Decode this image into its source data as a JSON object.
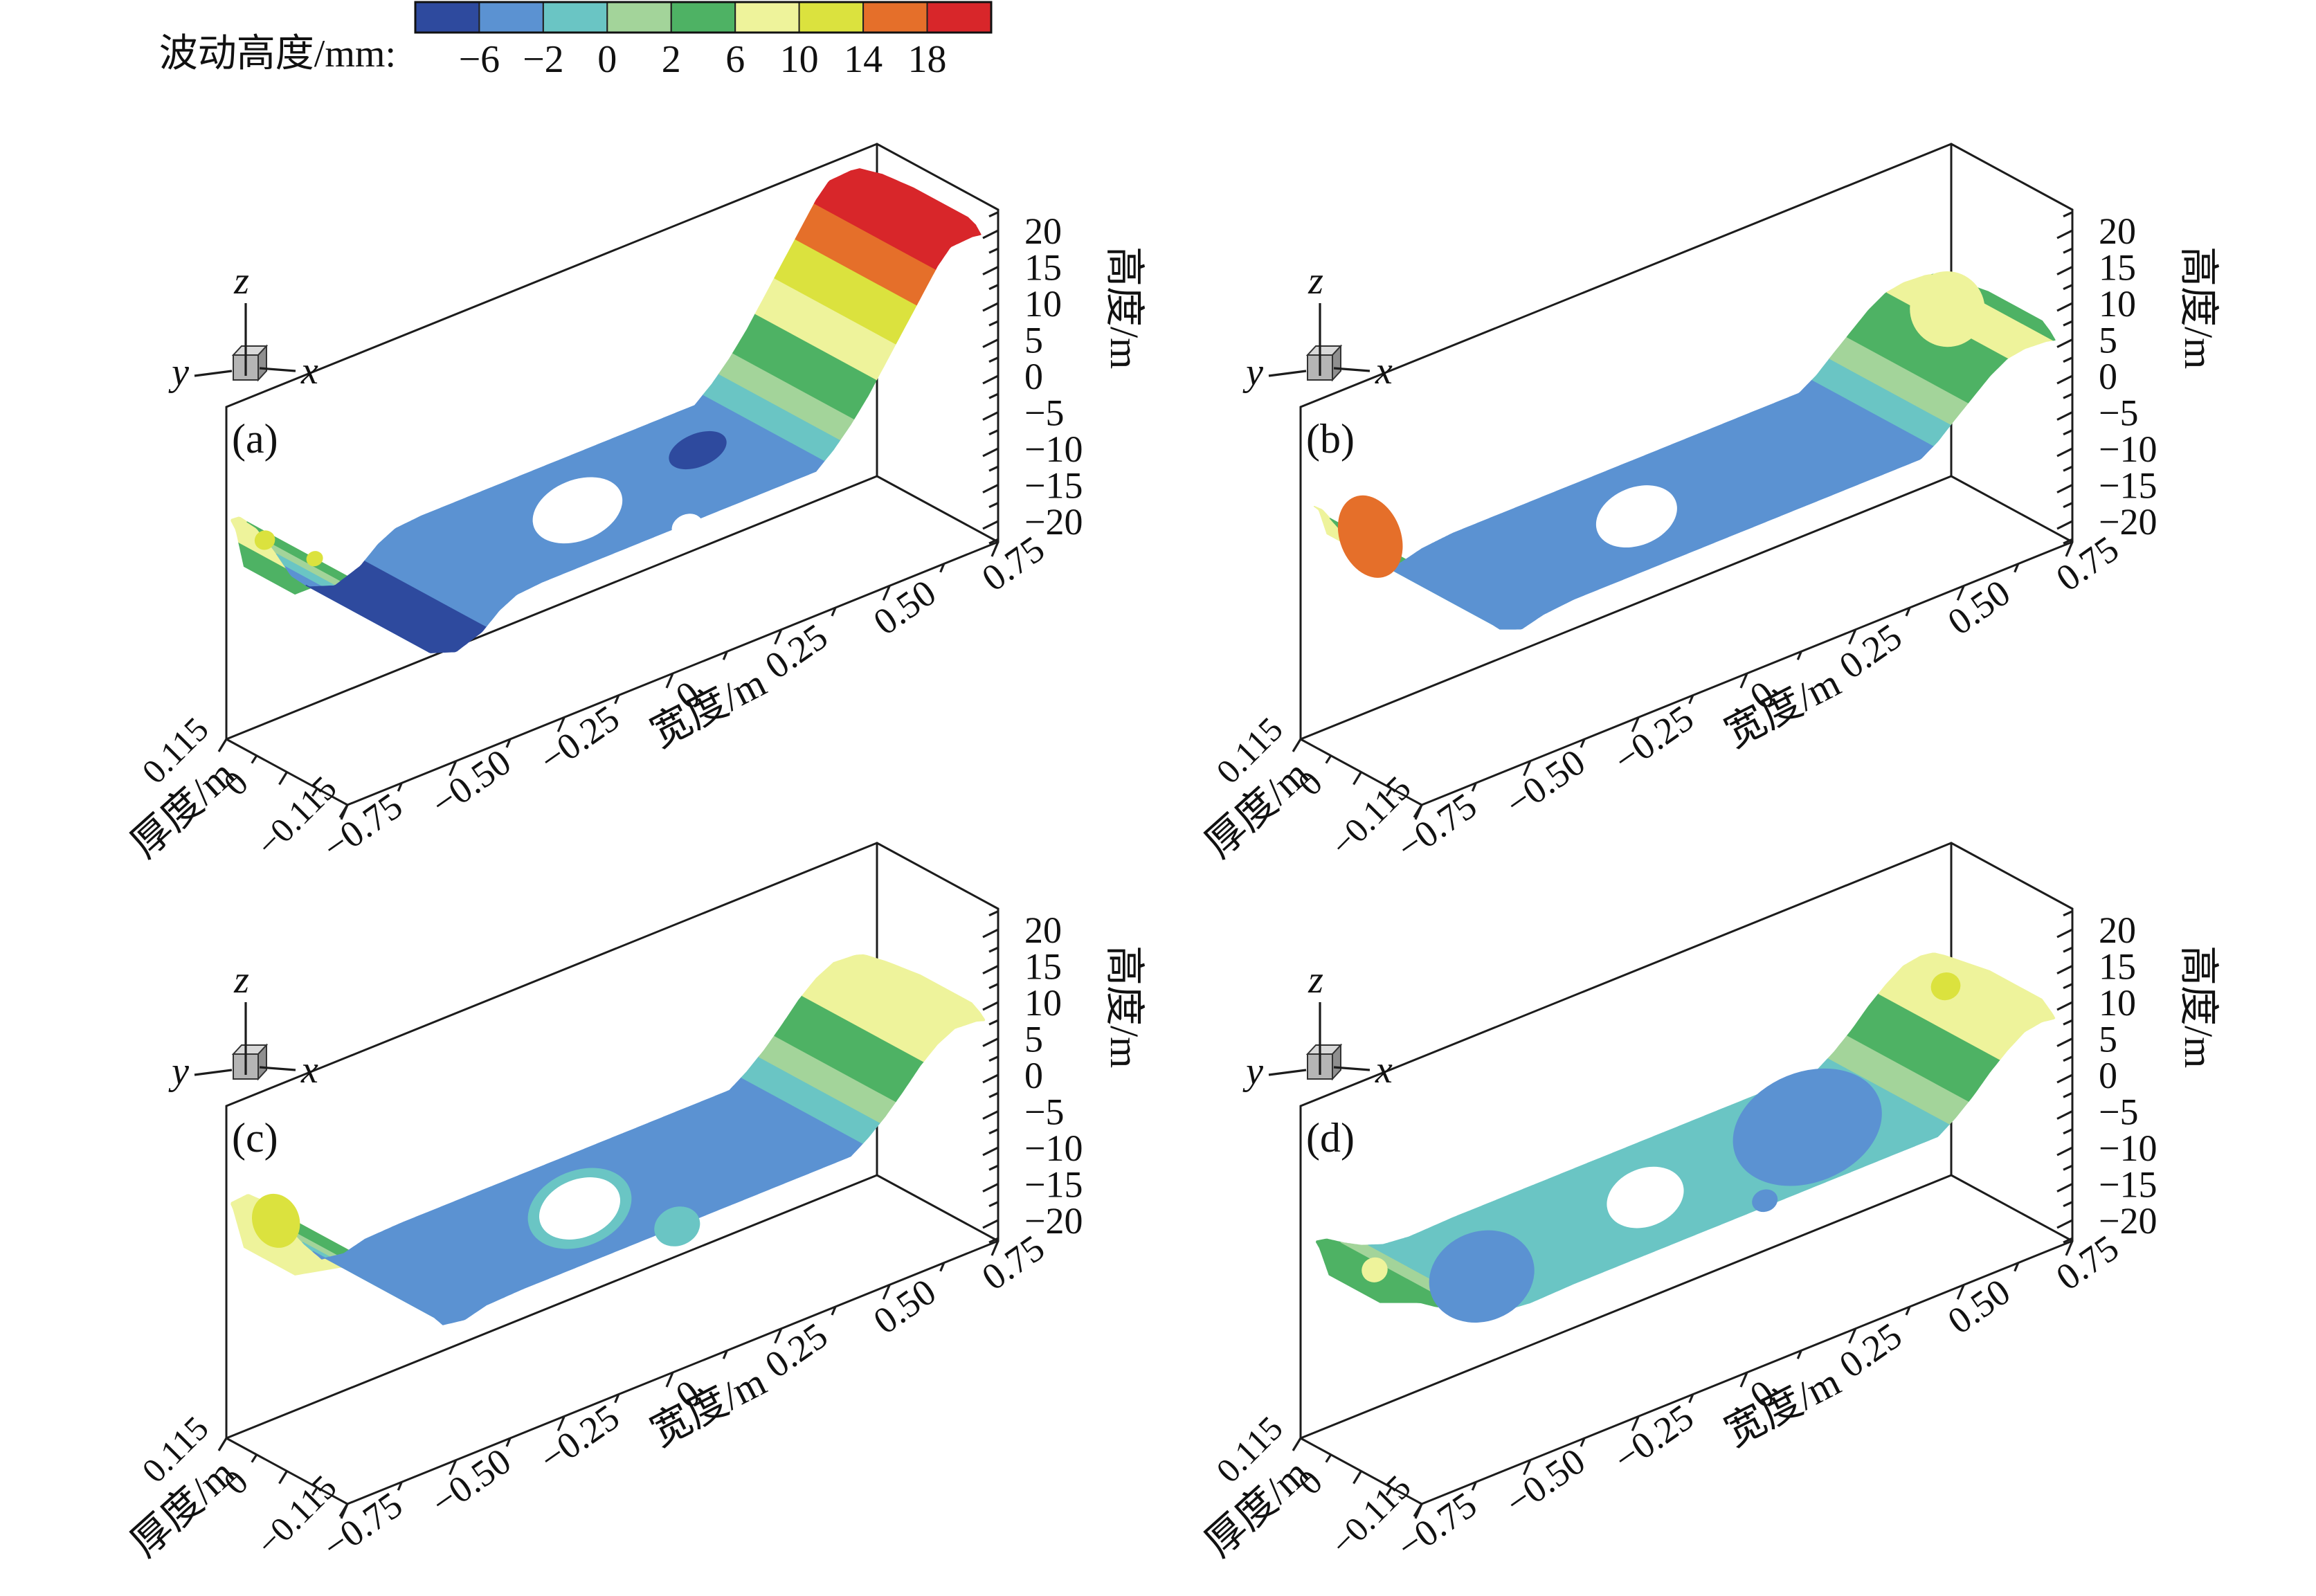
{
  "legend": {
    "title": "波动高度/mm:",
    "ticks": [
      "−6",
      "−2",
      "0",
      "2",
      "6",
      "10",
      "14",
      "18"
    ]
  },
  "axes": {
    "x_title": "宽度/m",
    "x_ticks": [
      "−0.75",
      "−0.50",
      "−0.25",
      "0",
      "0.25",
      "0.50",
      "0.75"
    ],
    "y_title": "厚度/m",
    "y_ticks": [
      "0.115",
      "0",
      "−0.115"
    ],
    "z_title": "高度/m",
    "z_ticks": [
      "20",
      "15",
      "10",
      "5",
      "0",
      "−5",
      "−10",
      "−15",
      "−20"
    ],
    "triad": {
      "x": "x",
      "y": "y",
      "z": "z"
    }
  },
  "subplots": [
    {
      "label": "(a)"
    },
    {
      "label": "(b)"
    },
    {
      "label": "(c)"
    },
    {
      "label": "(d)"
    }
  ],
  "chart_data": {
    "type": "heatmap",
    "subtype": "3d-contour-surface-grid",
    "panels": [
      "(a)",
      "(b)",
      "(c)",
      "(d)"
    ],
    "colorbar_title": "波动高度/mm:",
    "contour_levels_mm": [
      -6,
      -2,
      0,
      2,
      6,
      10,
      14,
      18
    ],
    "palette": [
      "#2e4a9e",
      "#5b92d2",
      "#6ac5c4",
      "#a3d49a",
      "#4eb264",
      "#eef39b",
      "#dbe23e",
      "#e56f2a",
      "#d8262a"
    ],
    "x_axis": {
      "label": "宽度/m",
      "range": [
        -0.75,
        0.75
      ],
      "major_step": 0.25
    },
    "y_axis": {
      "label": "厚度/m",
      "range": [
        0.115,
        -0.115
      ],
      "ticks": [
        0.115,
        0,
        -0.115
      ]
    },
    "z_axis": {
      "label": "高度/m",
      "range": [
        20,
        -20
      ],
      "major_step": 5
    },
    "surfaces": [
      {
        "label": "(a)",
        "profile_mm": [
          [
            -0.79,
            4.5
          ],
          [
            -0.76,
            7.2
          ],
          [
            -0.72,
            7.0
          ],
          [
            -0.68,
            4.5
          ],
          [
            -0.64,
            0.5
          ],
          [
            -0.6,
            -4
          ],
          [
            -0.56,
            -6.5
          ],
          [
            -0.5,
            -7.8
          ],
          [
            -0.44,
            -6.5
          ],
          [
            -0.4,
            -4.5
          ],
          [
            -0.36,
            -3.3
          ],
          [
            -0.3,
            -3
          ],
          [
            -0.1,
            -3
          ],
          [
            0.1,
            -3
          ],
          [
            0.33,
            -3
          ],
          [
            0.37,
            -1
          ],
          [
            0.41,
            1.5
          ],
          [
            0.45,
            4.5
          ],
          [
            0.49,
            8
          ],
          [
            0.53,
            11.5
          ],
          [
            0.57,
            15
          ],
          [
            0.61,
            18.5
          ],
          [
            0.64,
            20.4
          ],
          [
            0.69,
            20.6
          ],
          [
            0.73,
            20.2
          ],
          [
            0.76,
            19
          ]
        ],
        "features": [
          {
            "name": "hole",
            "x": -0.08,
            "t": 0.5,
            "rx": 0.1,
            "rt": 0.44,
            "color": "white"
          },
          {
            "name": "deep-spot",
            "x": 0.225,
            "t": 0.4,
            "rx": 0.065,
            "rt": 0.24,
            "color": 0
          },
          {
            "name": "tip-dot",
            "x": -0.745,
            "t": 0.3,
            "rx": 0.022,
            "rt": 0.14,
            "color": 6
          },
          {
            "name": "tip-dot",
            "x": -0.7,
            "t": 0.55,
            "rx": 0.018,
            "rt": 0.11,
            "color": 6
          },
          {
            "name": "edge-notch",
            "x": 0.025,
            "t": 1.03,
            "rx": 0.034,
            "rt": 0.18,
            "color": "white"
          }
        ]
      },
      {
        "label": "(b)",
        "profile_mm": [
          [
            -0.77,
            8.5
          ],
          [
            -0.74,
            9.5
          ],
          [
            -0.7,
            7.5
          ],
          [
            -0.65,
            3
          ],
          [
            -0.61,
            -0.5
          ],
          [
            -0.57,
            -3
          ],
          [
            -0.52,
            -4.2
          ],
          [
            -0.47,
            -3.4
          ],
          [
            -0.4,
            -3
          ],
          [
            0,
            -3
          ],
          [
            0.4,
            -3
          ],
          [
            0.44,
            -1.5
          ],
          [
            0.48,
            0.6
          ],
          [
            0.52,
            2.6
          ],
          [
            0.56,
            4.6
          ],
          [
            0.6,
            6
          ],
          [
            0.64,
            6.4
          ],
          [
            0.69,
            6.2
          ],
          [
            0.73,
            5.6
          ],
          [
            0.76,
            4.8
          ]
        ],
        "features": [
          {
            "name": "tip-orange-patch",
            "x": -0.715,
            "t": 0.45,
            "rx": 0.065,
            "rt": 0.62,
            "color": 7
          },
          {
            "name": "hole",
            "x": -0.115,
            "t": 0.5,
            "rx": 0.09,
            "rt": 0.42,
            "color": "white"
          },
          {
            "name": "cap-spot",
            "x": 0.635,
            "t": 0.38,
            "rx": 0.08,
            "rt": 0.55,
            "color": 5
          }
        ]
      },
      {
        "label": "(c)",
        "profile_mm": [
          [
            -0.79,
            7
          ],
          [
            -0.75,
            9.2
          ],
          [
            -0.7,
            9.5
          ],
          [
            -0.65,
            7
          ],
          [
            -0.61,
            3
          ],
          [
            -0.57,
            -0.5
          ],
          [
            -0.53,
            -3.5
          ],
          [
            -0.48,
            -4
          ],
          [
            -0.43,
            -3.2
          ],
          [
            -0.35,
            -3
          ],
          [
            0,
            -3
          ],
          [
            0.41,
            -3
          ],
          [
            0.45,
            -1.4
          ],
          [
            0.49,
            0.6
          ],
          [
            0.53,
            3
          ],
          [
            0.57,
            5.6
          ],
          [
            0.61,
            7.6
          ],
          [
            0.65,
            8.8
          ],
          [
            0.7,
            8.6
          ],
          [
            0.74,
            7.8
          ],
          [
            0.77,
            6.8
          ]
        ],
        "features": [
          {
            "name": "hole-ring",
            "x": -0.075,
            "t": 0.5,
            "rx": 0.115,
            "rt": 0.55,
            "color": 2
          },
          {
            "name": "hole",
            "x": -0.075,
            "t": 0.5,
            "rx": 0.09,
            "rt": 0.42,
            "color": "white"
          },
          {
            "name": "front-spot",
            "x": 0.01,
            "t": 1.0,
            "rx": 0.05,
            "rt": 0.28,
            "color": 2
          },
          {
            "name": "tongue-stripe",
            "x": -0.725,
            "t": 0.32,
            "rx": 0.05,
            "rt": 0.4,
            "color": 6
          }
        ]
      },
      {
        "label": "(d)",
        "profile_mm": [
          [
            -0.765,
            2.6
          ],
          [
            -0.73,
            3.6
          ],
          [
            -0.69,
            3.1
          ],
          [
            -0.65,
            1.6
          ],
          [
            -0.61,
            0.3
          ],
          [
            -0.56,
            -0.8
          ],
          [
            -0.5,
            -1.2
          ],
          [
            -0.4,
            -1
          ],
          [
            0,
            -1
          ],
          [
            0.44,
            -1
          ],
          [
            0.48,
            0.6
          ],
          [
            0.52,
            2.6
          ],
          [
            0.56,
            5
          ],
          [
            0.6,
            7
          ],
          [
            0.64,
            8.6
          ],
          [
            0.68,
            9
          ],
          [
            0.72,
            8.6
          ],
          [
            0.76,
            7.6
          ]
        ],
        "features": [
          {
            "name": "depression",
            "x": 0.29,
            "t": 0.46,
            "rx": 0.165,
            "rt": 0.8,
            "color": 1
          },
          {
            "name": "depression",
            "x": -0.5,
            "t": 0.6,
            "rx": 0.115,
            "rt": 0.65,
            "color": 1
          },
          {
            "name": "hole",
            "x": -0.095,
            "t": 0.5,
            "rx": 0.085,
            "rt": 0.42,
            "color": "white"
          },
          {
            "name": "front-dot",
            "x": 0.055,
            "t": 0.95,
            "rx": 0.028,
            "rt": 0.16,
            "color": 1
          },
          {
            "name": "cap-dot",
            "x": 0.645,
            "t": 0.33,
            "rx": 0.032,
            "rt": 0.2,
            "color": 6
          },
          {
            "name": "tip-dot",
            "x": -0.705,
            "t": 0.45,
            "rx": 0.028,
            "rt": 0.18,
            "color": 5
          }
        ]
      }
    ]
  }
}
